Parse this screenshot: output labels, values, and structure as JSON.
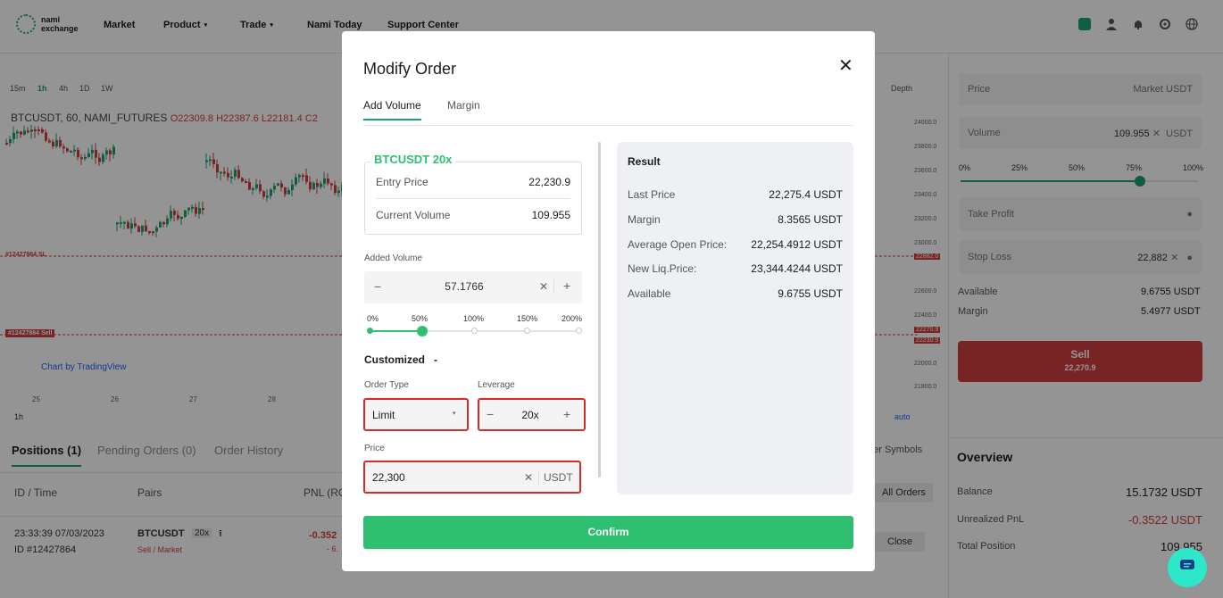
{
  "nav": {
    "logo_line1": "nami",
    "logo_line2": "exchange",
    "items": [
      {
        "label": "Market"
      },
      {
        "label": "Product"
      },
      {
        "label": "Trade"
      },
      {
        "label": "Nami Today"
      },
      {
        "label": "Support Center"
      }
    ]
  },
  "chart_toolbar": {
    "timeframes": [
      "15m",
      "1h",
      "4h",
      "1D",
      "1W"
    ],
    "active": "1h",
    "depth_label": "Depth"
  },
  "chart_info": {
    "symbol_line": "BTCUSDT, 60, NAMI_FUTURES",
    "ohlc": "O22309.8  H22387.6  L22181.4  C2",
    "sl_tag": "#12427864 SL",
    "sell_tag": "#12427864 Sell",
    "tv_credit": "Chart by TradingView",
    "x_labels": [
      "25",
      "26",
      "27",
      "28"
    ],
    "interval": "1h",
    "price_ticks": [
      "24000.0",
      "23800.0",
      "23600.0",
      "23400.0",
      "23200.0",
      "23000.0",
      "22882.0",
      "22600.0",
      "22400.0",
      "22270.9",
      "22230.9",
      "22000.0",
      "21800.0"
    ],
    "auto_label": "auto"
  },
  "bottom": {
    "tabs": [
      {
        "label": "Positions",
        "count": "(1)"
      },
      {
        "label": "Pending Orders",
        "count": "(0)"
      },
      {
        "label": "Order History",
        "count": ""
      }
    ],
    "columns": [
      "ID / Time",
      "Pairs",
      "PNL (RO"
    ],
    "row": {
      "time": "23:33:39 07/03/2023",
      "id": "ID #12427864",
      "pair": "BTCUSDT",
      "leverage": "20x",
      "side": "Sell / Market",
      "pnl": "-0.352",
      "pnl2": "- 6."
    },
    "other_symbols": "her Symbols",
    "all_orders": "All Orders",
    "close": "Close"
  },
  "right_panel": {
    "price_label": "Price",
    "price_value": "Market",
    "price_unit": "USDT",
    "volume_label": "Volume",
    "volume_value": "109.955",
    "volume_unit": "USDT",
    "pcts": [
      "0%",
      "25%",
      "50%",
      "75%",
      "100%"
    ],
    "take_profit": "Take Profit",
    "stop_loss": "Stop Loss",
    "stop_loss_value": "22,882",
    "available_label": "Available",
    "available_value": "9.6755 USDT",
    "margin_label": "Margin",
    "margin_value": "5.4977 USDT",
    "sell_label": "Sell",
    "sell_price": "22,270.9",
    "overview_title": "Overview",
    "balance_label": "Balance",
    "balance_value": "15.1732 USDT",
    "upnl_label": "Unrealized PnL",
    "upnl_value": "-0.3522 USDT",
    "total_pos_label": "Total Position",
    "total_pos_value": "109.955"
  },
  "modal": {
    "title": "Modify Order",
    "close_symbol": "✕",
    "tabs": [
      {
        "label": "Add Volume"
      },
      {
        "label": "Margin"
      }
    ],
    "symbol_tag": "BTCUSDT 20x",
    "entry_price_label": "Entry Price",
    "entry_price_value": "22,230.9",
    "current_volume_label": "Current Volume",
    "current_volume_value": "109.955",
    "added_volume_label": "Added Volume",
    "added_volume_value": "57.1766",
    "added_volume_fraction": 0.25,
    "slider_labels": [
      "0%",
      "50%",
      "100%",
      "150%",
      "200%"
    ],
    "customized_label": "Customized",
    "order_type_label": "Order Type",
    "order_type_value": "Limit",
    "leverage_label": "Leverage",
    "leverage_value": "20x",
    "price_label": "Price",
    "price_value": "22,300",
    "price_unit": "USDT",
    "confirm_label": "Confirm",
    "result": {
      "title": "Result",
      "rows": [
        {
          "label": "Last Price",
          "value": "22,275.4 USDT"
        },
        {
          "label": "Margin",
          "value": "8.3565 USDT"
        },
        {
          "label": "Average Open Price:",
          "value": "22,254.4912 USDT"
        },
        {
          "label": "New Liq.Price:",
          "value": "23,344.4244 USDT"
        },
        {
          "label": "Available",
          "value": "9.6755 USDT"
        }
      ]
    }
  },
  "colors": {
    "accent": "#2fbf71",
    "sell": "#d13f3f",
    "highlight_border": "#d62b2b",
    "chat": "#2ee6c8"
  }
}
